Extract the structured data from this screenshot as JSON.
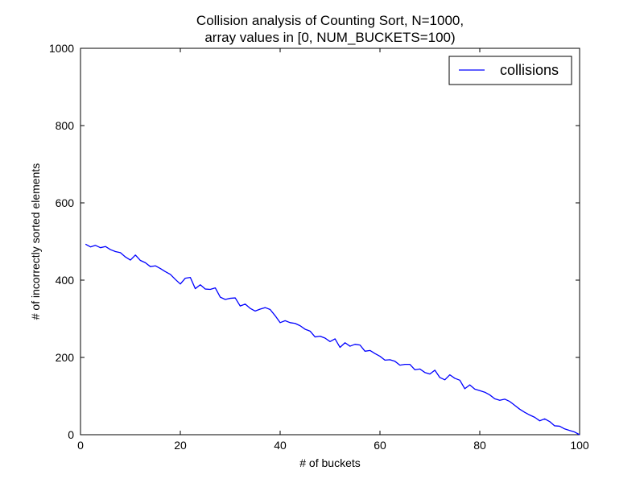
{
  "chart_data": {
    "type": "line",
    "title_line1": "Collision analysis of Counting Sort, N=1000,",
    "title_line2": "array values in [0, NUM_BUCKETS=100)",
    "xlabel": "# of buckets",
    "ylabel": "# of incorrectly sorted elements",
    "xlim": [
      0,
      100
    ],
    "ylim": [
      0,
      1000
    ],
    "xticks": [
      0,
      20,
      40,
      60,
      80,
      100
    ],
    "yticks": [
      0,
      200,
      400,
      600,
      800,
      1000
    ],
    "legend_position": "top-right",
    "grid": false,
    "series": [
      {
        "name": "collisions",
        "color": "#0000ff",
        "x": [
          1,
          2,
          3,
          4,
          5,
          6,
          7,
          8,
          9,
          10,
          11,
          12,
          13,
          14,
          15,
          16,
          17,
          18,
          19,
          20,
          21,
          22,
          23,
          24,
          25,
          26,
          27,
          28,
          29,
          30,
          31,
          32,
          33,
          34,
          35,
          36,
          37,
          38,
          39,
          40,
          41,
          42,
          43,
          44,
          45,
          46,
          47,
          48,
          49,
          50,
          51,
          52,
          53,
          54,
          55,
          56,
          57,
          58,
          59,
          60,
          61,
          62,
          63,
          64,
          65,
          66,
          67,
          68,
          69,
          70,
          71,
          72,
          73,
          74,
          75,
          76,
          77,
          78,
          79,
          80,
          81,
          82,
          83,
          84,
          85,
          86,
          87,
          88,
          89,
          90,
          91,
          92,
          93,
          94,
          95,
          96,
          97,
          98,
          99,
          100
        ],
        "y": [
          493,
          486,
          490,
          484,
          487,
          479,
          474,
          471,
          460,
          452,
          465,
          451,
          445,
          435,
          437,
          430,
          422,
          415,
          402,
          390,
          405,
          407,
          378,
          388,
          377,
          376,
          380,
          356,
          350,
          353,
          354,
          333,
          338,
          327,
          320,
          325,
          329,
          324,
          308,
          290,
          295,
          290,
          288,
          282,
          273,
          268,
          253,
          255,
          250,
          241,
          248,
          226,
          238,
          229,
          234,
          232,
          216,
          218,
          210,
          203,
          193,
          194,
          190,
          180,
          182,
          182,
          168,
          170,
          161,
          157,
          167,
          148,
          142,
          155,
          146,
          141,
          119,
          129,
          118,
          114,
          110,
          103,
          93,
          89,
          92,
          86,
          76,
          66,
          58,
          51,
          45,
          36,
          41,
          34,
          23,
          22,
          15,
          11,
          7,
          0
        ]
      }
    ]
  }
}
